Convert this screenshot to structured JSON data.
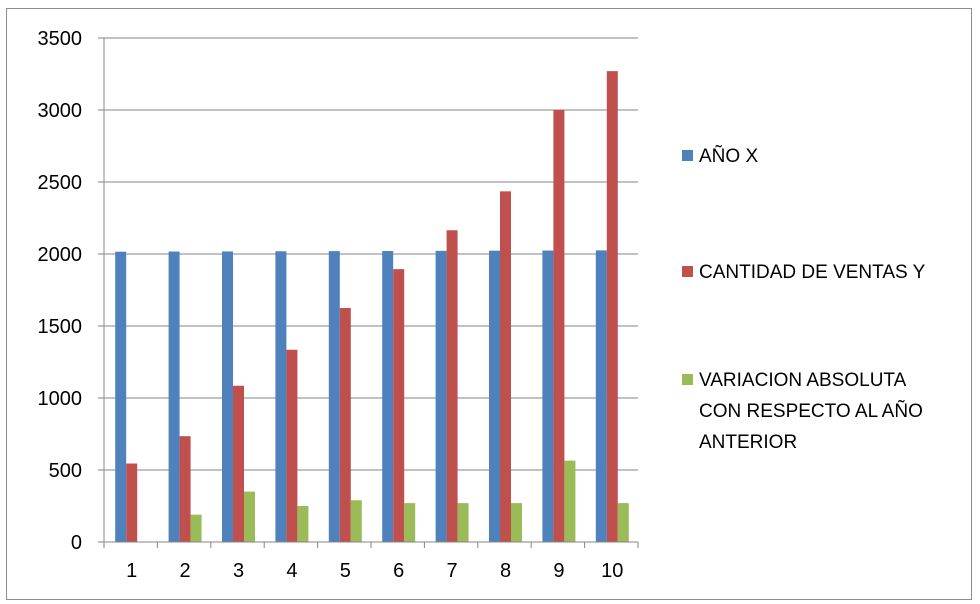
{
  "chart_data": {
    "type": "bar",
    "categories": [
      "1",
      "2",
      "3",
      "4",
      "5",
      "6",
      "7",
      "8",
      "9",
      "10"
    ],
    "series": [
      {
        "name": "AÑO X",
        "color": "#4f81bd",
        "values": [
          2016,
          2017,
          2018,
          2019,
          2020,
          2021,
          2022,
          2023,
          2024,
          2025
        ]
      },
      {
        "name": "CANTIDAD DE VENTAS Y",
        "color": "#c0504d",
        "values": [
          545,
          735,
          1085,
          1335,
          1625,
          1895,
          2165,
          2435,
          3000,
          3270
        ]
      },
      {
        "name": "VARIACION ABSOLUTA CON RESPECTO AL AÑO ANTERIOR",
        "legend_lines": [
          "VARIACION ABSOLUTA",
          "CON RESPECTO AL AÑO",
          "ANTERIOR"
        ],
        "color": "#9bbb59",
        "values": [
          0,
          190,
          350,
          250,
          290,
          270,
          270,
          270,
          565,
          270
        ]
      }
    ],
    "y_ticks": [
      "0",
      "500",
      "1000",
      "1500",
      "2000",
      "2500",
      "3000",
      "3500"
    ],
    "ylim": [
      0,
      3500
    ],
    "grid": true,
    "legend_position": "right"
  }
}
